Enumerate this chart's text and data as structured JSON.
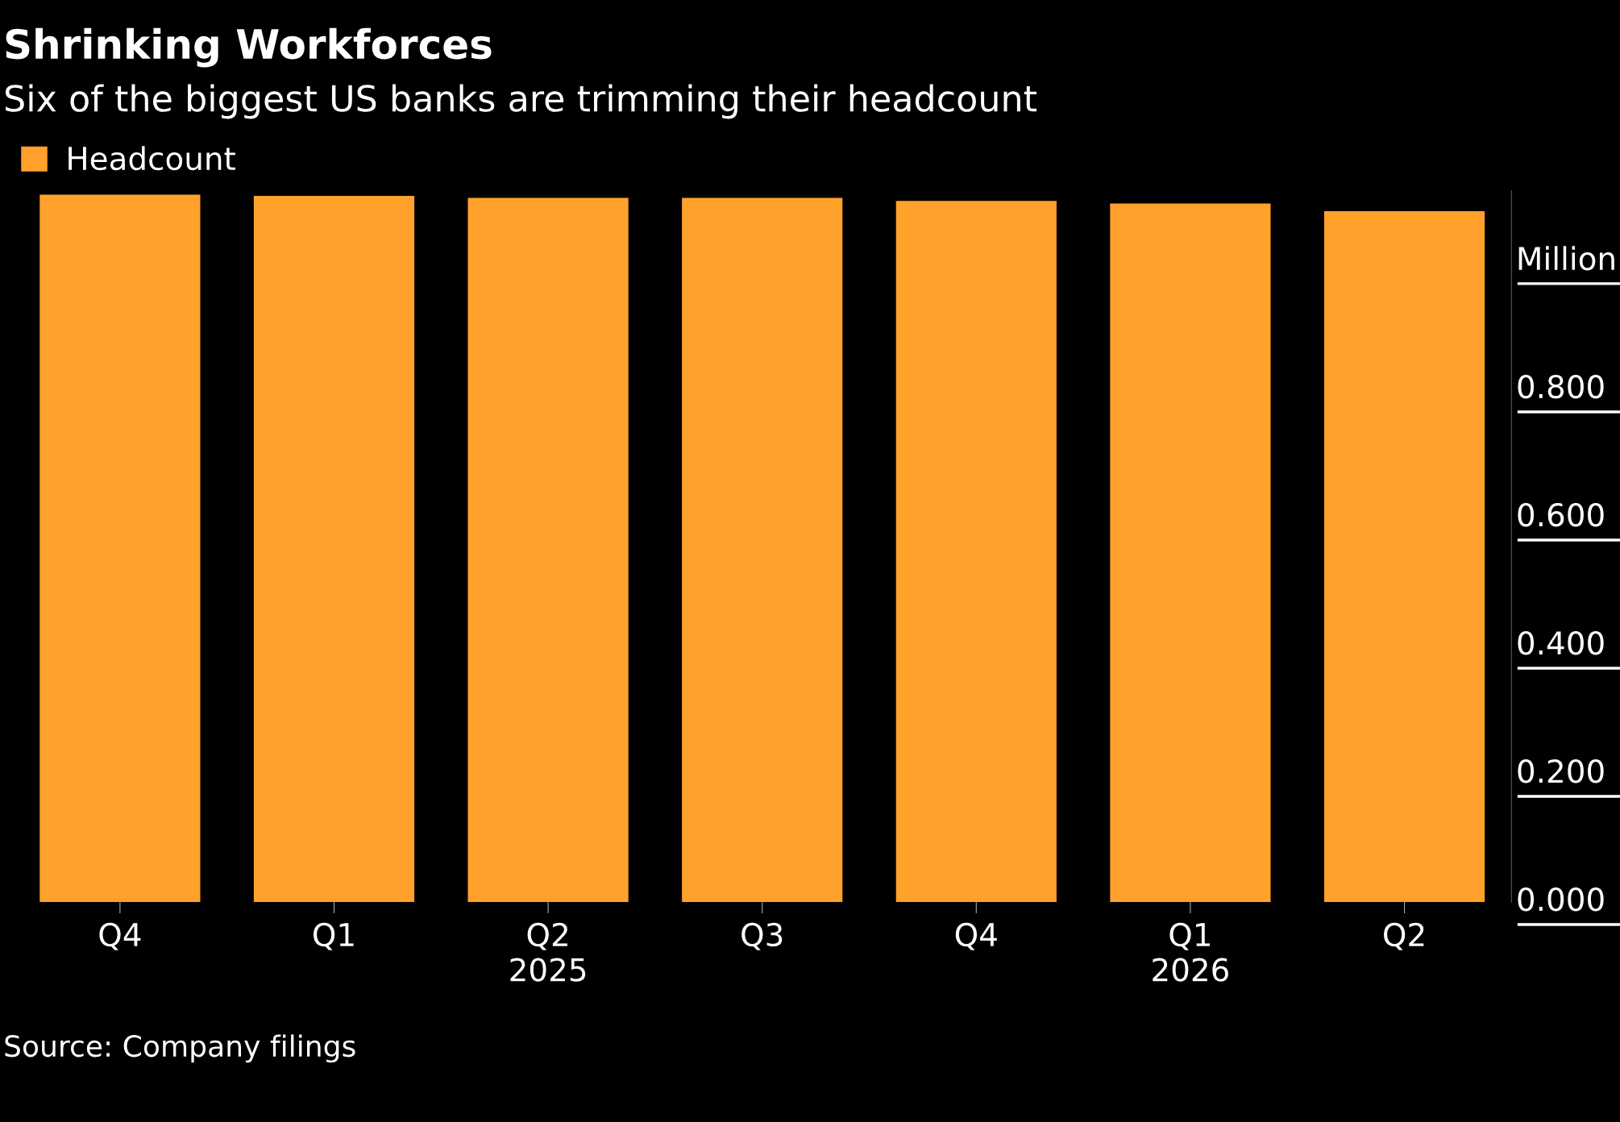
{
  "chart_data": {
    "type": "bar",
    "title": "Shrinking Workforces",
    "subtitle": "Six of the biggest US banks are trimming their headcount",
    "categories": [
      "Q4",
      "Q1",
      "Q2\n2025",
      "Q3",
      "Q4",
      "Q1\n2026",
      "Q2"
    ],
    "series": [
      {
        "name": "Headcount",
        "color": "#ffa12b",
        "values": [
          1.104,
          1.102,
          1.099,
          1.099,
          1.094,
          1.09,
          1.078
        ]
      }
    ],
    "ylim": [
      0,
      1.11
    ],
    "yticks": [
      {
        "value": 0,
        "label": "0.000"
      },
      {
        "value": 0.2,
        "label": "0.200"
      },
      {
        "value": 0.4,
        "label": "0.400"
      },
      {
        "value": 0.6,
        "label": "0.600"
      },
      {
        "value": 0.8,
        "label": "0.800"
      },
      {
        "value": 1.0,
        "label": "Million"
      }
    ],
    "grid": false,
    "legend": "top left",
    "annotations": [
      "Source: Company filings"
    ]
  }
}
